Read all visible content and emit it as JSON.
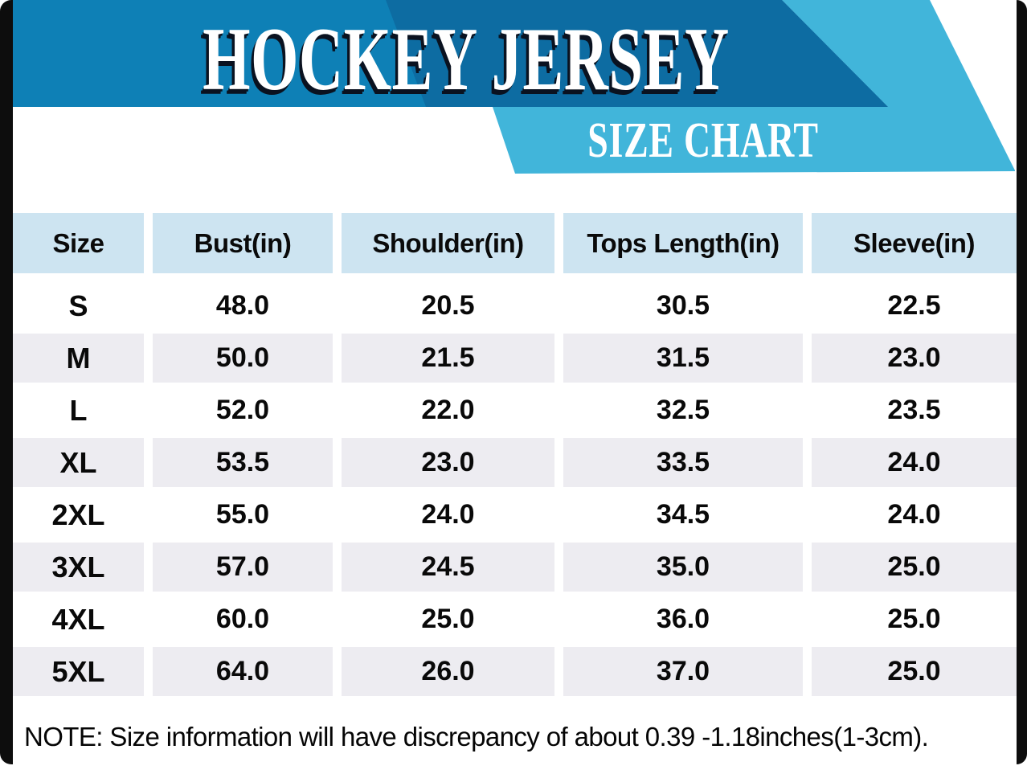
{
  "header": {
    "title": "HOCKEY JERSEY",
    "subtitle": "SIZE CHART"
  },
  "table": {
    "columns": [
      "Size",
      "Bust(in)",
      "Shoulder(in)",
      "Tops Length(in)",
      "Sleeve(in)"
    ],
    "rows": [
      [
        "S",
        "48.0",
        "20.5",
        "30.5",
        "22.5"
      ],
      [
        "M",
        "50.0",
        "21.5",
        "31.5",
        "23.0"
      ],
      [
        "L",
        "52.0",
        "22.0",
        "32.5",
        "23.5"
      ],
      [
        "XL",
        "53.5",
        "23.0",
        "33.5",
        "24.0"
      ],
      [
        "2XL",
        "55.0",
        "24.0",
        "34.5",
        "24.0"
      ],
      [
        "3XL",
        "57.0",
        "24.5",
        "35.0",
        "25.0"
      ],
      [
        "4XL",
        "60.0",
        "25.0",
        "36.0",
        "25.0"
      ],
      [
        "5XL",
        "64.0",
        "26.0",
        "37.0",
        "25.0"
      ]
    ]
  },
  "note": "NOTE: Size information will have discrepancy of about 0.39 -1.18inches(1-3cm).",
  "colors": {
    "banner_medium_blue": "#0e80b6",
    "banner_dark_blue": "#0d6ca2",
    "banner_cyan": "#41b5da",
    "header_cell_blue": "#cde4f1",
    "row_alt_gray": "#edecf1",
    "frame_black": "#0d0d0d",
    "title_white": "#ffffff"
  },
  "chart_data": {
    "type": "table",
    "title": "HOCKEY JERSEY",
    "subtitle": "SIZE CHART",
    "categories": [
      "S",
      "M",
      "L",
      "XL",
      "2XL",
      "3XL",
      "4XL",
      "5XL"
    ],
    "series": [
      {
        "name": "Bust(in)",
        "values": [
          48.0,
          50.0,
          52.0,
          53.5,
          55.0,
          57.0,
          60.0,
          64.0
        ]
      },
      {
        "name": "Shoulder(in)",
        "values": [
          20.5,
          21.5,
          22.0,
          23.0,
          24.0,
          24.5,
          25.0,
          26.0
        ]
      },
      {
        "name": "Tops Length(in)",
        "values": [
          30.5,
          31.5,
          32.5,
          33.5,
          34.5,
          35.0,
          36.0,
          37.0
        ]
      },
      {
        "name": "Sleeve(in)",
        "values": [
          22.5,
          23.0,
          23.5,
          24.0,
          24.0,
          25.0,
          25.0,
          25.0
        ]
      }
    ],
    "note": "NOTE: Size information will have discrepancy of about 0.39 -1.18inches(1-3cm)."
  }
}
